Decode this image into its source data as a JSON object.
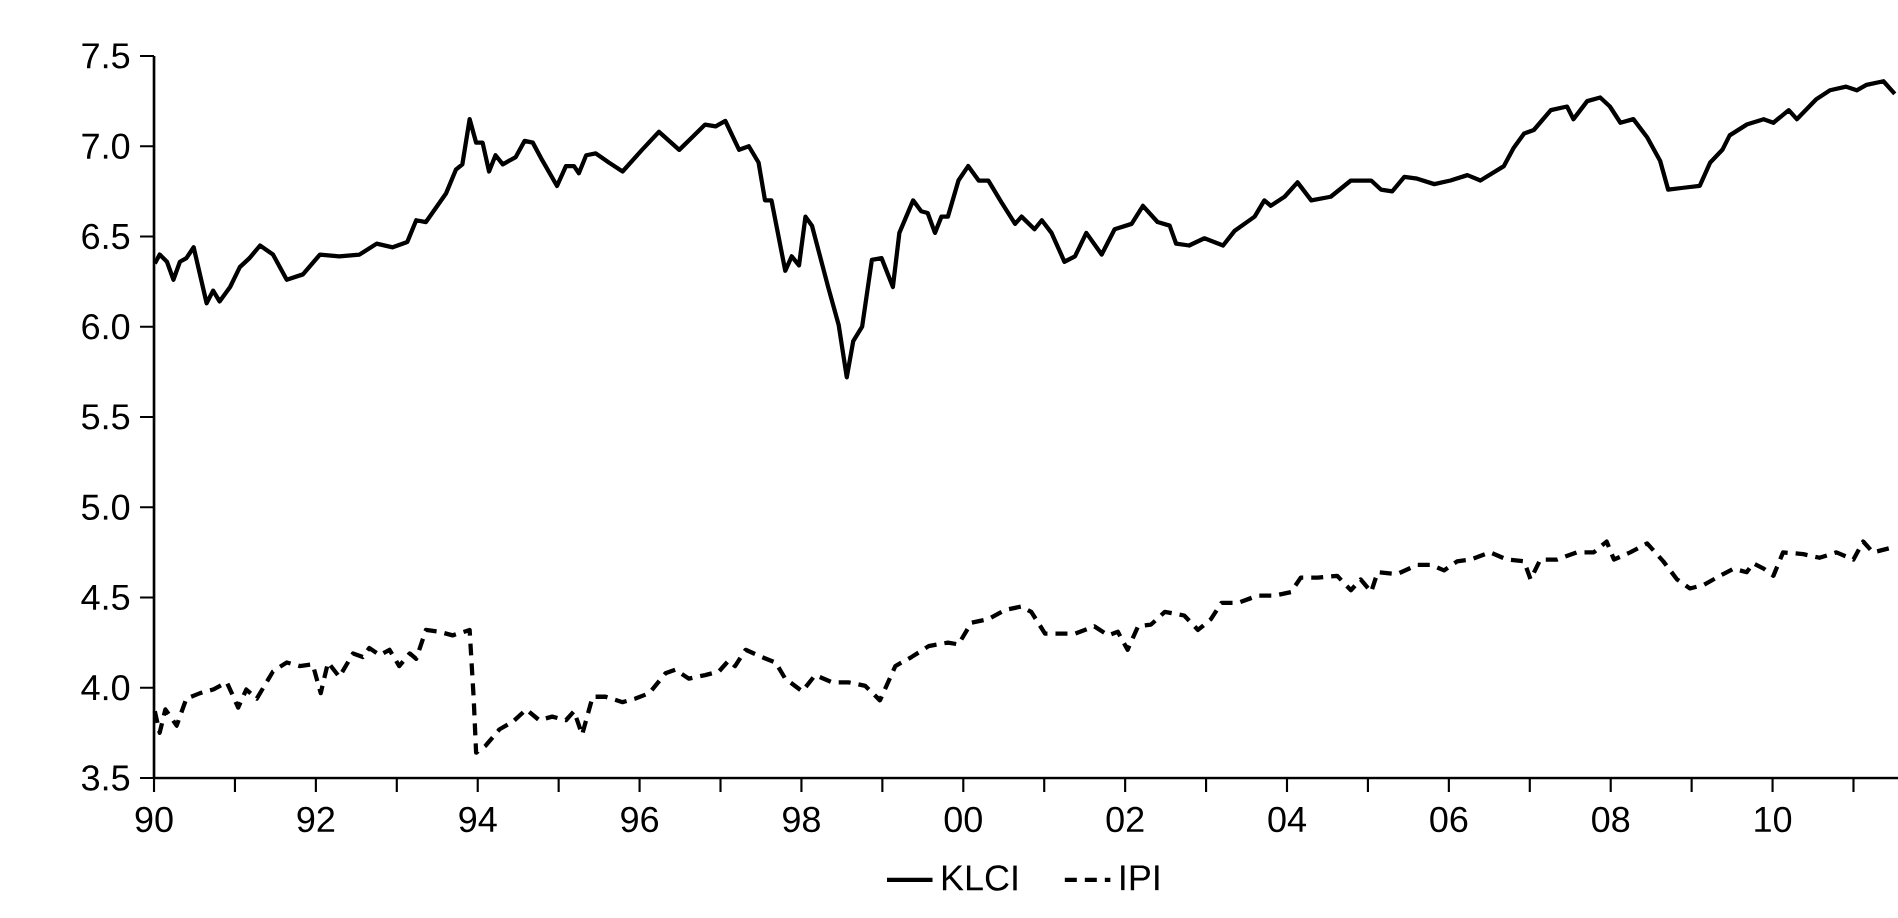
{
  "chart_data": {
    "type": "line",
    "xlim": [
      1990,
      2011.55
    ],
    "xticks": [
      {
        "value": 1990,
        "label": "90"
      },
      {
        "value": 1991,
        "label": null
      },
      {
        "value": 1992,
        "label": "92"
      },
      {
        "value": 1993,
        "label": null
      },
      {
        "value": 1994,
        "label": "94"
      },
      {
        "value": 1995,
        "label": null
      },
      {
        "value": 1996,
        "label": "96"
      },
      {
        "value": 1997,
        "label": null
      },
      {
        "value": 1998,
        "label": "98"
      },
      {
        "value": 1999,
        "label": null
      },
      {
        "value": 2000,
        "label": "00"
      },
      {
        "value": 2001,
        "label": null
      },
      {
        "value": 2002,
        "label": "02"
      },
      {
        "value": 2003,
        "label": null
      },
      {
        "value": 2004,
        "label": "04"
      },
      {
        "value": 2005,
        "label": null
      },
      {
        "value": 2006,
        "label": "06"
      },
      {
        "value": 2007,
        "label": null
      },
      {
        "value": 2008,
        "label": "08"
      },
      {
        "value": 2009,
        "label": null
      },
      {
        "value": 2010,
        "label": "10"
      },
      {
        "value": 2011,
        "label": null
      }
    ],
    "ylim": [
      3.5,
      7.5
    ],
    "yticks": [
      {
        "value": 3.5,
        "label": "3.5"
      },
      {
        "value": 4,
        "label": "4.0"
      },
      {
        "value": 4.5,
        "label": "4.5"
      },
      {
        "value": 5,
        "label": "5.0"
      },
      {
        "value": 5.5,
        "label": "5.5"
      },
      {
        "value": 6,
        "label": "6.0"
      },
      {
        "value": 6.5,
        "label": "6.5"
      },
      {
        "value": 7,
        "label": "7.0"
      },
      {
        "value": 7.5,
        "label": "7.5"
      }
    ],
    "legend": "bottom",
    "series": [
      {
        "name": "KLCI",
        "color": "#000000",
        "line_style": "solid",
        "x": [
          1990.01,
          1990.07,
          1990.16,
          1990.24,
          1990.32,
          1990.4,
          1990.49,
          1990.65,
          1990.73,
          1990.81,
          1990.94,
          1991.06,
          1991.18,
          1991.31,
          1991.47,
          1991.64,
          1991.84,
          1992.05,
          1992.29,
          1992.54,
          1992.75,
          1992.95,
          1993.13,
          1993.24,
          1993.36,
          1993.61,
          1993.73,
          1993.81,
          1993.9,
          1993.98,
          1994.06,
          1994.14,
          1994.22,
          1994.31,
          1994.47,
          1994.58,
          1994.68,
          1994.8,
          1994.98,
          1995.09,
          1995.19,
          1995.25,
          1995.34,
          1995.46,
          1995.62,
          1995.79,
          1996.03,
          1996.24,
          1996.49,
          1996.65,
          1996.81,
          1996.94,
          1997.06,
          1997.23,
          1997.35,
          1997.47,
          1997.55,
          1997.63,
          1997.8,
          1997.88,
          1997.97,
          1998.05,
          1998.13,
          1998.33,
          1998.46,
          1998.56,
          1998.64,
          1998.75,
          1998.87,
          1998.99,
          1999.13,
          1999.21,
          1999.38,
          1999.48,
          1999.56,
          1999.65,
          1999.73,
          1999.81,
          1999.94,
          2000.06,
          2000.19,
          2000.31,
          2000.47,
          2000.64,
          2000.72,
          2000.88,
          2000.97,
          2001.09,
          2001.25,
          2001.38,
          2001.52,
          2001.71,
          2001.87,
          2002.08,
          2002.22,
          2002.4,
          2002.55,
          2002.63,
          2002.79,
          2002.98,
          2003.21,
          2003.35,
          2003.6,
          2003.72,
          2003.8,
          2003.97,
          2004.13,
          2004.3,
          2004.54,
          2004.79,
          2005.04,
          2005.16,
          2005.3,
          2005.45,
          2005.61,
          2005.82,
          2006.02,
          2006.23,
          2006.39,
          2006.68,
          2006.8,
          2006.93,
          2007.05,
          2007.26,
          2007.46,
          2007.54,
          2007.71,
          2007.87,
          2007.99,
          2008.12,
          2008.28,
          2008.45,
          2008.61,
          2008.71,
          2008.9,
          2009.1,
          2009.23,
          2009.38,
          2009.47,
          2009.68,
          2009.89,
          2010.01,
          2010.2,
          2010.3,
          2010.54,
          2010.71,
          2010.91,
          2011.04,
          2011.16,
          2011.37,
          2011.51
        ],
        "values": [
          6.35,
          6.4,
          6.36,
          6.26,
          6.36,
          6.38,
          6.44,
          6.13,
          6.2,
          6.14,
          6.22,
          6.33,
          6.38,
          6.45,
          6.4,
          6.26,
          6.29,
          6.4,
          6.39,
          6.4,
          6.46,
          6.44,
          6.47,
          6.59,
          6.58,
          6.74,
          6.87,
          6.9,
          7.15,
          7.02,
          7.02,
          6.86,
          6.95,
          6.9,
          6.94,
          7.03,
          7.02,
          6.92,
          6.78,
          6.89,
          6.89,
          6.85,
          6.95,
          6.96,
          6.91,
          6.86,
          6.98,
          7.08,
          6.98,
          7.05,
          7.12,
          7.11,
          7.14,
          6.98,
          7.0,
          6.91,
          6.7,
          6.7,
          6.31,
          6.39,
          6.34,
          6.61,
          6.56,
          6.22,
          6.01,
          5.72,
          5.92,
          6.0,
          6.37,
          6.38,
          6.22,
          6.52,
          6.7,
          6.64,
          6.63,
          6.52,
          6.61,
          6.61,
          6.81,
          6.89,
          6.81,
          6.81,
          6.69,
          6.57,
          6.61,
          6.54,
          6.59,
          6.52,
          6.36,
          6.39,
          6.52,
          6.4,
          6.54,
          6.57,
          6.67,
          6.58,
          6.56,
          6.46,
          6.45,
          6.49,
          6.45,
          6.53,
          6.61,
          6.7,
          6.67,
          6.72,
          6.8,
          6.7,
          6.72,
          6.81,
          6.81,
          6.76,
          6.75,
          6.83,
          6.82,
          6.79,
          6.81,
          6.84,
          6.81,
          6.89,
          6.99,
          7.07,
          7.09,
          7.2,
          7.22,
          7.15,
          7.25,
          7.27,
          7.22,
          7.13,
          7.15,
          7.05,
          6.92,
          6.76,
          6.77,
          6.78,
          6.91,
          6.98,
          7.06,
          7.12,
          7.15,
          7.13,
          7.2,
          7.15,
          7.26,
          7.31,
          7.33,
          7.31,
          7.34,
          7.36,
          7.29
        ]
      },
      {
        "name": "IPI",
        "color": "#000000",
        "line_style": "dashed",
        "x": [
          1990.01,
          1990.07,
          1990.14,
          1990.28,
          1990.4,
          1990.57,
          1990.73,
          1990.9,
          1991.04,
          1991.14,
          1991.27,
          1991.47,
          1991.64,
          1991.8,
          1991.96,
          1992.06,
          1992.15,
          1992.29,
          1992.46,
          1992.58,
          1992.66,
          1992.79,
          1992.91,
          1993.03,
          1993.16,
          1993.24,
          1993.36,
          1993.53,
          1993.69,
          1993.9,
          1993.95,
          1993.98,
          1994.1,
          1994.27,
          1994.43,
          1994.6,
          1994.76,
          1994.92,
          1995.09,
          1995.19,
          1995.29,
          1995.42,
          1995.58,
          1995.79,
          1995.95,
          1996.12,
          1996.32,
          1996.44,
          1996.61,
          1996.81,
          1996.98,
          1997.1,
          1997.18,
          1997.31,
          1997.51,
          1997.68,
          1997.8,
          1998.01,
          1998.17,
          1998.38,
          1998.58,
          1998.79,
          1998.97,
          1999.16,
          1999.36,
          1999.57,
          1999.81,
          1999.94,
          2000.1,
          2000.31,
          2000.51,
          2000.72,
          2000.84,
          2001.01,
          2001.17,
          2001.38,
          2001.62,
          2001.79,
          2001.91,
          2002.03,
          2002.16,
          2002.32,
          2002.49,
          2002.73,
          2002.9,
          2003.06,
          2003.19,
          2003.39,
          2003.64,
          2003.84,
          2004.05,
          2004.17,
          2004.38,
          2004.62,
          2004.79,
          2004.91,
          2005.04,
          2005.12,
          2005.36,
          2005.61,
          2005.78,
          2005.94,
          2006.1,
          2006.27,
          2006.51,
          2006.72,
          2006.93,
          2007.01,
          2007.13,
          2007.34,
          2007.58,
          2007.79,
          2007.95,
          2008.04,
          2008.24,
          2008.45,
          2008.65,
          2008.82,
          2008.98,
          2009.15,
          2009.35,
          2009.52,
          2009.68,
          2009.76,
          2009.89,
          2010.01,
          2010.13,
          2010.38,
          2010.58,
          2010.79,
          2011.0,
          2011.12,
          2011.24,
          2011.51
        ],
        "values": [
          3.87,
          3.75,
          3.88,
          3.79,
          3.94,
          3.97,
          3.99,
          4.03,
          3.89,
          3.99,
          3.94,
          4.09,
          4.14,
          4.12,
          4.13,
          3.97,
          4.14,
          4.06,
          4.19,
          4.17,
          4.22,
          4.18,
          4.21,
          4.12,
          4.19,
          4.16,
          4.32,
          4.31,
          4.29,
          4.32,
          3.94,
          3.64,
          3.68,
          3.77,
          3.81,
          3.88,
          3.82,
          3.84,
          3.82,
          3.87,
          3.74,
          3.95,
          3.95,
          3.92,
          3.94,
          3.97,
          4.08,
          4.1,
          4.05,
          4.07,
          4.09,
          4.15,
          4.12,
          4.21,
          4.17,
          4.14,
          4.05,
          3.98,
          4.07,
          4.03,
          4.03,
          4.01,
          3.93,
          4.12,
          4.17,
          4.23,
          4.25,
          4.24,
          4.36,
          4.38,
          4.43,
          4.45,
          4.42,
          4.3,
          4.3,
          4.3,
          4.34,
          4.29,
          4.31,
          4.21,
          4.34,
          4.35,
          4.42,
          4.4,
          4.32,
          4.38,
          4.47,
          4.47,
          4.51,
          4.51,
          4.53,
          4.61,
          4.61,
          4.62,
          4.54,
          4.6,
          4.53,
          4.64,
          4.63,
          4.68,
          4.68,
          4.65,
          4.7,
          4.71,
          4.75,
          4.71,
          4.7,
          4.6,
          4.71,
          4.71,
          4.75,
          4.75,
          4.81,
          4.71,
          4.75,
          4.8,
          4.7,
          4.6,
          4.55,
          4.57,
          4.62,
          4.66,
          4.64,
          4.69,
          4.66,
          4.62,
          4.75,
          4.74,
          4.72,
          4.75,
          4.71,
          4.81,
          4.75,
          4.78
        ]
      }
    ]
  }
}
